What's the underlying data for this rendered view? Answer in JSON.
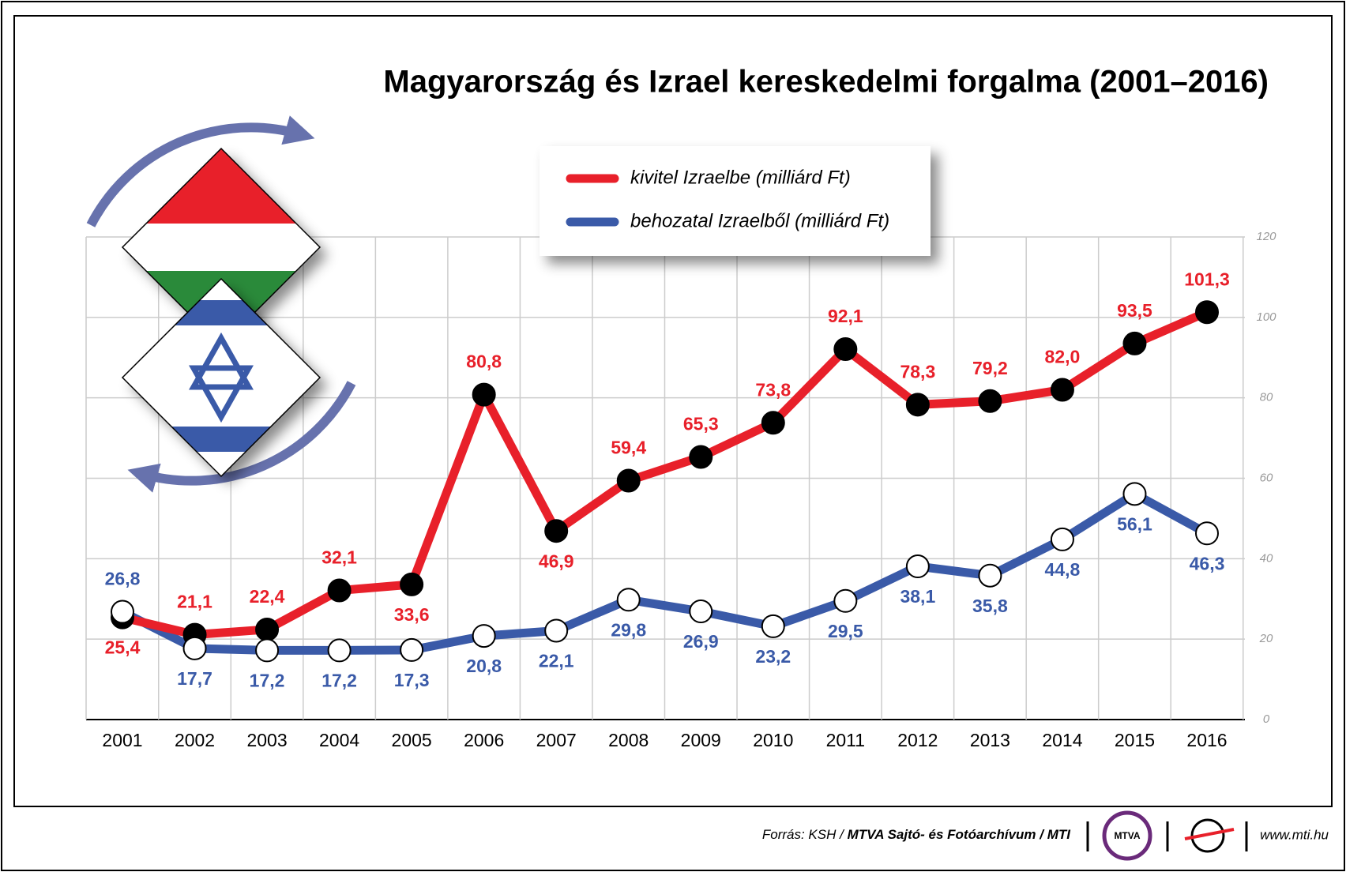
{
  "chart_data": {
    "type": "line",
    "title": "Magyarország és Izrael kereskedelmi forgalma (2001–2016)",
    "categories": [
      "2001",
      "2002",
      "2003",
      "2004",
      "2005",
      "2006",
      "2007",
      "2008",
      "2009",
      "2010",
      "2011",
      "2012",
      "2013",
      "2014",
      "2015",
      "2016"
    ],
    "series": [
      {
        "name": "kivitel Izraelbe (milliárd Ft)",
        "color": "#e8202a",
        "values": [
          25.4,
          21.1,
          22.4,
          32.1,
          33.6,
          80.8,
          46.9,
          59.4,
          65.3,
          73.8,
          92.1,
          78.3,
          79.2,
          82.0,
          93.5,
          101.3
        ],
        "value_labels": [
          "25,4",
          "21,1",
          "22,4",
          "32,1",
          "33,6",
          "80,8",
          "46,9",
          "59,4",
          "65,3",
          "73,8",
          "92,1",
          "78,3",
          "79,2",
          "82,0",
          "93,5",
          "101,3"
        ]
      },
      {
        "name": "behozatal Izraelből (milliárd Ft)",
        "color": "#3a5aa8",
        "values": [
          26.8,
          17.7,
          17.2,
          17.2,
          17.3,
          20.8,
          22.1,
          29.8,
          26.9,
          23.2,
          29.5,
          38.1,
          35.8,
          44.8,
          56.1,
          46.3
        ],
        "value_labels": [
          "26,8",
          "17,7",
          "17,2",
          "17,2",
          "17,3",
          "20,8",
          "22,1",
          "29,8",
          "26,9",
          "23,2",
          "29,5",
          "38,1",
          "35,8",
          "44,8",
          "56,1",
          "46,3"
        ]
      }
    ],
    "ylim": [
      0,
      120
    ],
    "yticks": [
      0,
      20,
      40,
      60,
      80,
      100,
      120
    ],
    "grid": true
  },
  "footer": {
    "source_prefix": "Forrás: KSH /",
    "source_name": "MTVA Sajtó- és Fotóarchívum / MTI",
    "logo": "MTVA",
    "url": "www.mti.hu"
  }
}
